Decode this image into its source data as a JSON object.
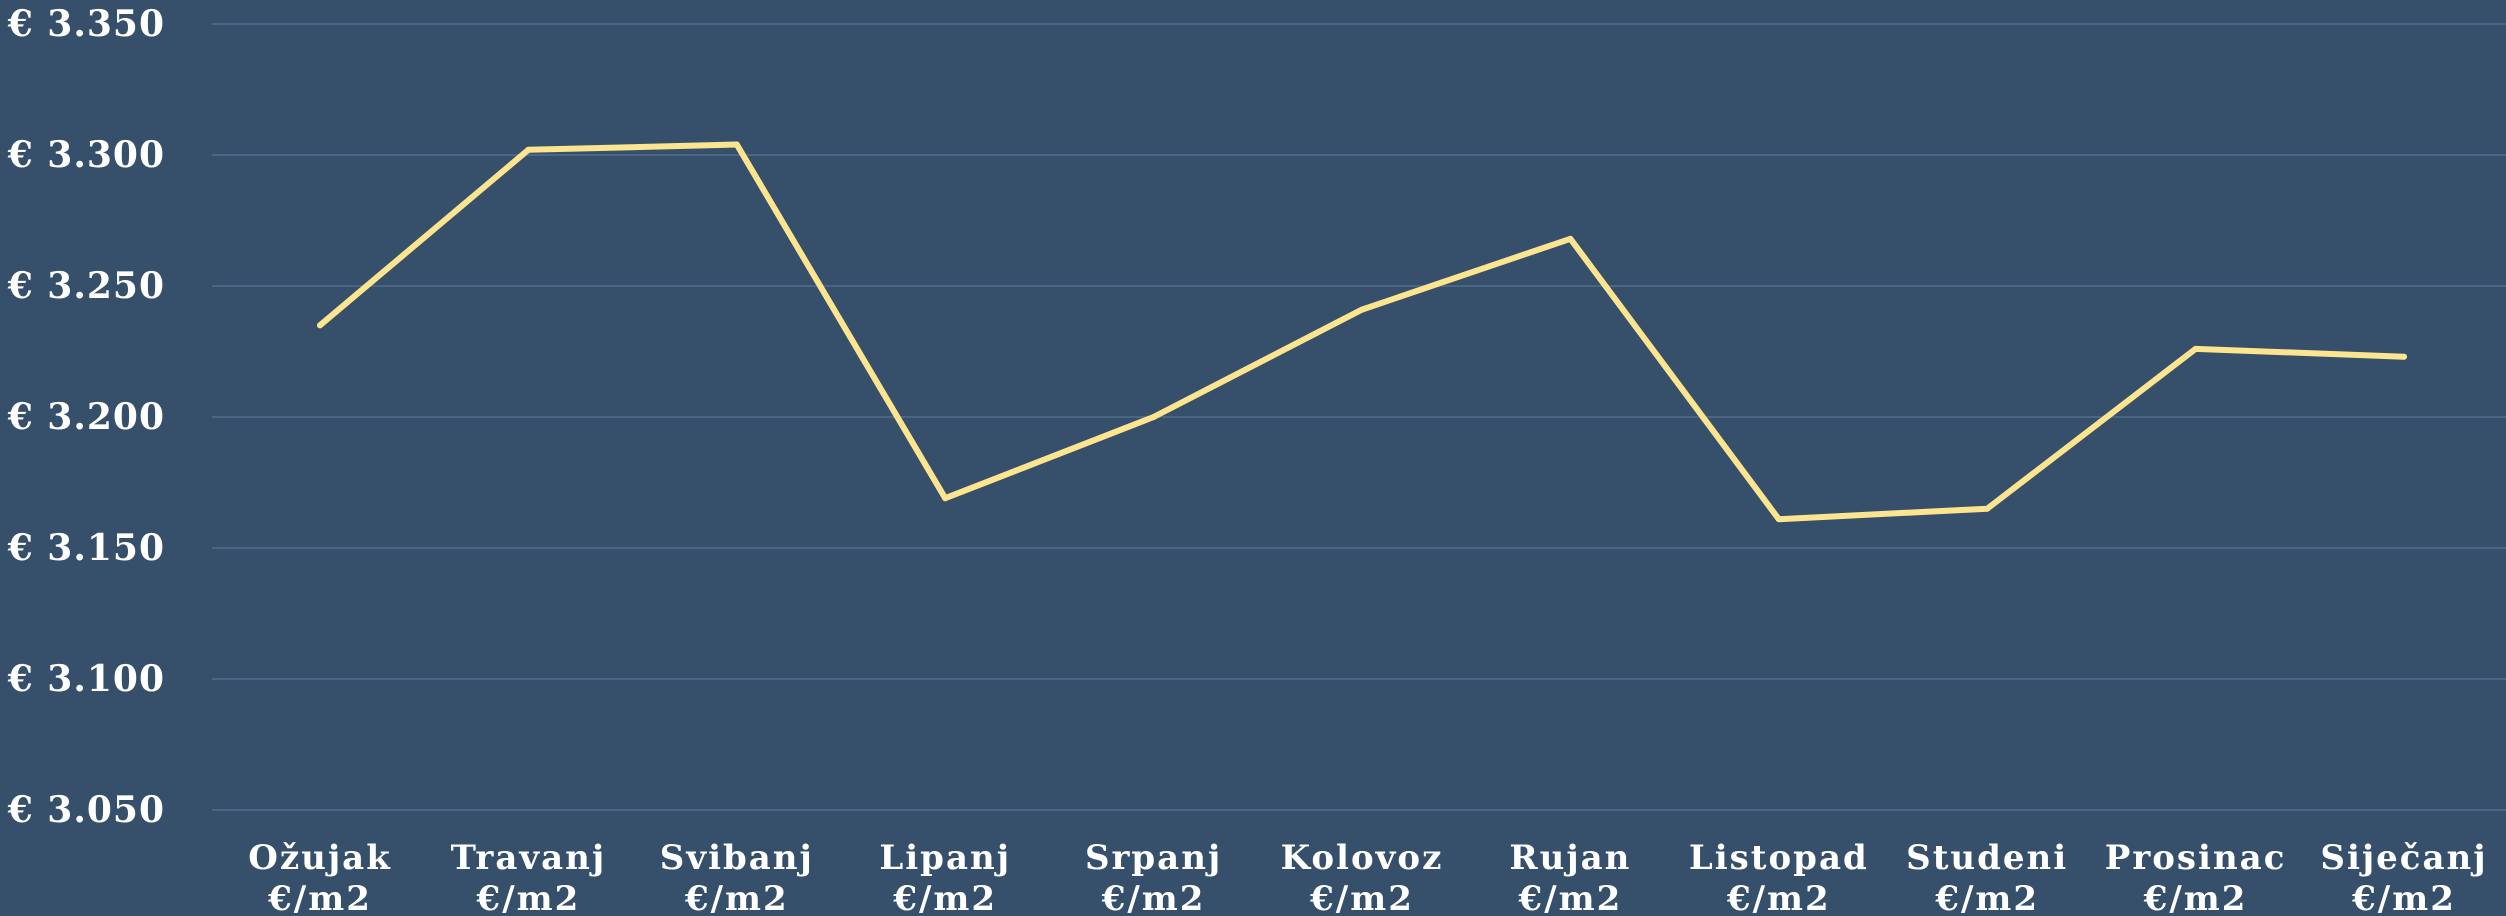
{
  "chart_data": {
    "type": "line",
    "categories": [
      [
        "Ožujak",
        "€/m2"
      ],
      [
        "Travanj",
        "€/m2"
      ],
      [
        "Svibanj",
        "€/m2"
      ],
      [
        "Lipanj",
        "€/m2"
      ],
      [
        "Srpanj",
        "€/m2"
      ],
      [
        "Kolovoz",
        "€/m2"
      ],
      [
        "Rujan",
        "€/m2"
      ],
      [
        "Listopad",
        "€/m2"
      ],
      [
        "Studeni",
        "€/m2"
      ],
      [
        "Prosinac",
        "€/m2"
      ],
      [
        "Siječanj",
        "€/m2"
      ]
    ],
    "series": [
      {
        "values": [
          3235,
          3302,
          3304,
          3169,
          3200,
          3241,
          3268,
          3161,
          3165,
          3226,
          3223
        ]
      }
    ],
    "y_ticks": [
      {
        "value": 3350,
        "label": "€ 3.350"
      },
      {
        "value": 3300,
        "label": "€ 3.300"
      },
      {
        "value": 3250,
        "label": "€ 3.250"
      },
      {
        "value": 3200,
        "label": "€ 3.200"
      },
      {
        "value": 3150,
        "label": "€ 3.150"
      },
      {
        "value": 3100,
        "label": "€ 3.100"
      },
      {
        "value": 3050,
        "label": "€ 3.050"
      }
    ],
    "ylim": [
      3050,
      3350
    ],
    "grid": true,
    "legend": "none",
    "colors": {
      "background": "#36506b",
      "grid": "#4a6683",
      "line": "#fde58f",
      "text": "#ffffff"
    }
  }
}
